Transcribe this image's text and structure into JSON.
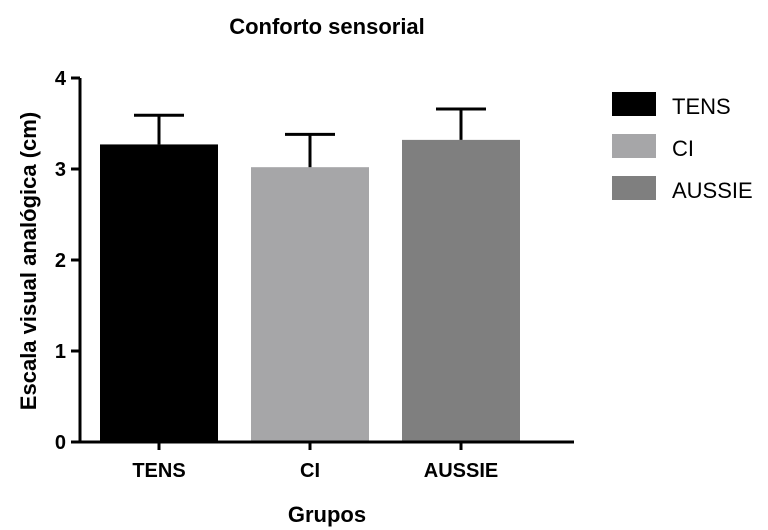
{
  "chart_data": {
    "type": "bar",
    "title": "Conforto sensorial",
    "xlabel": "Grupos",
    "ylabel": "Escala visual analógica (cm)",
    "categories": [
      "TENS",
      "CI",
      "AUSSIE"
    ],
    "values": [
      3.27,
      3.02,
      3.32
    ],
    "errors": [
      0.32,
      0.36,
      0.34
    ],
    "colors": [
      "#000000",
      "#a6a6a8",
      "#7f7f7f"
    ],
    "ylim": [
      0,
      4
    ],
    "yticks": [
      "0",
      "1",
      "2",
      "3",
      "4"
    ],
    "grid": false,
    "legend": {
      "position": "right",
      "entries": [
        "TENS",
        "CI",
        "AUSSIE"
      ]
    }
  }
}
